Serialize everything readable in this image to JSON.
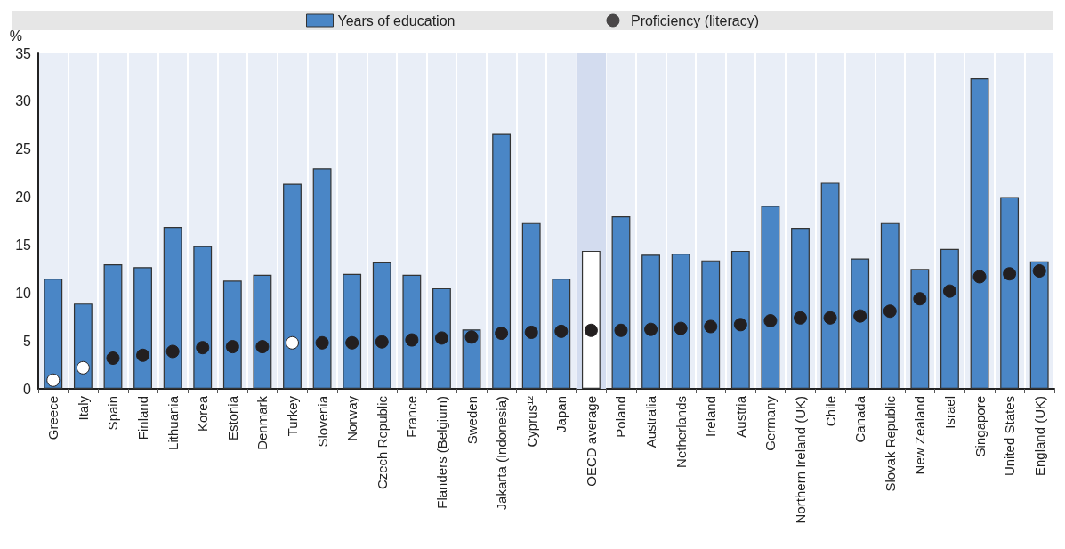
{
  "chart_data": {
    "type": "bar",
    "ylabel": "%",
    "categories": [
      "Greece",
      "Italy",
      "Spain",
      "Finland",
      "Lithuania",
      "Korea",
      "Estonia",
      "Denmark",
      "Turkey",
      "Slovenia",
      "Norway",
      "Czech Republic",
      "France",
      "Flanders (Belgium)",
      "Sweden",
      "Jakarta (Indonesia)",
      "Cyprus¹²",
      "Japan",
      "OECD average",
      "Poland",
      "Australia",
      "Netherlands",
      "Ireland",
      "Austria",
      "Germany",
      "Northern Ireland (UK)",
      "Chile",
      "Canada",
      "Slovak Republic",
      "New Zealand",
      "Israel",
      "Singapore",
      "United States",
      "England (UK)"
    ],
    "series": [
      {
        "name": "Years of education",
        "color": "#4a86c6",
        "colors": [
          "#4a86c6",
          "#4a86c6",
          "#4a86c6",
          "#4a86c6",
          "#4a86c6",
          "#4a86c6",
          "#4a86c6",
          "#4a86c6",
          "#4a86c6",
          "#4a86c6",
          "#4a86c6",
          "#4a86c6",
          "#4a86c6",
          "#4a86c6",
          "#4a86c6",
          "#4a86c6",
          "#4a86c6",
          "#4a86c6",
          "#ffffff",
          "#4a86c6",
          "#4a86c6",
          "#4a86c6",
          "#4a86c6",
          "#4a86c6",
          "#4a86c6",
          "#4a86c6",
          "#4a86c6",
          "#4a86c6",
          "#4a86c6",
          "#4a86c6",
          "#4a86c6",
          "#4a86c6",
          "#4a86c6",
          "#4a86c6"
        ],
        "values": [
          11.5,
          8.9,
          13.0,
          12.7,
          16.9,
          14.9,
          11.3,
          11.9,
          21.4,
          23.0,
          12.0,
          13.2,
          11.9,
          10.5,
          6.2,
          26.6,
          17.3,
          11.5,
          14.4,
          18.0,
          14.0,
          14.1,
          13.4,
          14.4,
          19.1,
          16.8,
          21.5,
          13.6,
          17.3,
          12.5,
          14.6,
          32.4,
          20.0,
          13.3
        ]
      },
      {
        "name": "Proficiency (literacy)",
        "type": "scatter",
        "marker": "circle",
        "color": "#231f20",
        "colors": [
          "#ffffff",
          "#ffffff",
          "#231f20",
          "#231f20",
          "#231f20",
          "#231f20",
          "#231f20",
          "#231f20",
          "#ffffff",
          "#231f20",
          "#231f20",
          "#231f20",
          "#231f20",
          "#231f20",
          "#231f20",
          "#231f20",
          "#231f20",
          "#231f20",
          "#231f20",
          "#231f20",
          "#231f20",
          "#231f20",
          "#231f20",
          "#231f20",
          "#231f20",
          "#231f20",
          "#231f20",
          "#231f20",
          "#231f20",
          "#231f20",
          "#231f20",
          "#231f20",
          "#231f20",
          "#231f20"
        ],
        "values": [
          0.9,
          2.2,
          3.2,
          3.5,
          3.9,
          4.3,
          4.4,
          4.4,
          4.8,
          4.8,
          4.8,
          4.9,
          5.1,
          5.3,
          5.4,
          5.8,
          5.9,
          6.0,
          6.1,
          6.1,
          6.2,
          6.3,
          6.5,
          6.7,
          7.1,
          7.4,
          7.4,
          7.6,
          8.1,
          9.4,
          10.2,
          11.7,
          12.0,
          12.3
        ]
      }
    ],
    "bands": [
      {
        "axis": "x",
        "from": "OECD average",
        "to": "OECD average",
        "color": "#d3dcef"
      }
    ],
    "ylim": [
      0,
      35
    ],
    "yticks": [
      0,
      5,
      10,
      15,
      20,
      25,
      30,
      35
    ],
    "grid": true,
    "legend": "top"
  }
}
